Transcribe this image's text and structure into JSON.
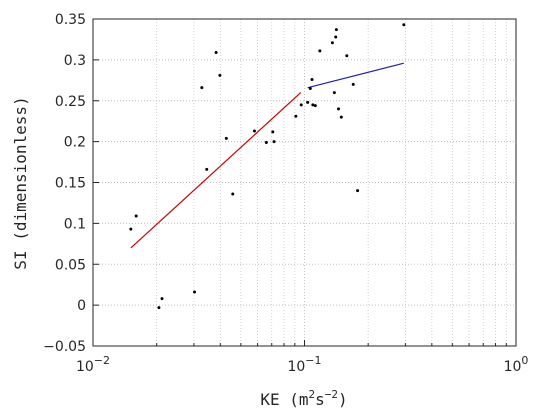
{
  "chart_data": {
    "type": "scatter",
    "title": "",
    "xlabel": {
      "base": "KE (m",
      "sup1": "2",
      "mid": "s",
      "sup2": "−2",
      "end": ")"
    },
    "ylabel": "SI (dimensionless)",
    "xscale": "log",
    "xlim": [
      0.01,
      1
    ],
    "ylim": [
      -0.05,
      0.35
    ],
    "grid": {
      "x": true,
      "x_minor": true,
      "y": true
    },
    "x_ticks": [
      {
        "value": 0.01,
        "base": "10",
        "exp": "−2"
      },
      {
        "value": 0.1,
        "base": "10",
        "exp": "−1"
      },
      {
        "value": 1,
        "base": "10",
        "exp": "0"
      }
    ],
    "y_ticks": [
      {
        "value": -0.05,
        "label": "−0.05"
      },
      {
        "value": 0,
        "label": "0"
      },
      {
        "value": 0.05,
        "label": "0.05"
      },
      {
        "value": 0.1,
        "label": "0.1"
      },
      {
        "value": 0.15,
        "label": "0.15"
      },
      {
        "value": 0.2,
        "label": "0.2"
      },
      {
        "value": 0.25,
        "label": "0.25"
      },
      {
        "value": 0.3,
        "label": "0.3"
      },
      {
        "value": 0.35,
        "label": "0.35"
      }
    ],
    "points": [
      [
        0.0151,
        0.093
      ],
      [
        0.016,
        0.109
      ],
      [
        0.0205,
        -0.003
      ],
      [
        0.0212,
        0.008
      ],
      [
        0.0302,
        0.016
      ],
      [
        0.0327,
        0.266
      ],
      [
        0.0345,
        0.166
      ],
      [
        0.0382,
        0.309
      ],
      [
        0.0398,
        0.281
      ],
      [
        0.0427,
        0.204
      ],
      [
        0.0458,
        0.136
      ],
      [
        0.058,
        0.213
      ],
      [
        0.066,
        0.199
      ],
      [
        0.0708,
        0.212
      ],
      [
        0.0718,
        0.2
      ],
      [
        0.091,
        0.231
      ],
      [
        0.0965,
        0.245
      ],
      [
        0.1035,
        0.248
      ],
      [
        0.1065,
        0.265
      ],
      [
        0.1085,
        0.276
      ],
      [
        0.1095,
        0.245
      ],
      [
        0.1125,
        0.244
      ],
      [
        0.1182,
        0.311
      ],
      [
        0.1355,
        0.321
      ],
      [
        0.1384,
        0.26
      ],
      [
        0.1405,
        0.328
      ],
      [
        0.1415,
        0.337
      ],
      [
        0.1448,
        0.24
      ],
      [
        0.1493,
        0.23
      ],
      [
        0.1585,
        0.305
      ],
      [
        0.17,
        0.27
      ],
      [
        0.1782,
        0.14
      ],
      [
        0.2948,
        0.343
      ]
    ],
    "fit_lines": [
      {
        "color": "#cc0000",
        "from": [
          0.0151,
          0.07
        ],
        "to": [
          0.096,
          0.26
        ]
      },
      {
        "color": "#1f1fb4",
        "from": [
          0.1035,
          0.266
        ],
        "to": [
          0.2948,
          0.296
        ]
      }
    ],
    "point_color": "#000000"
  }
}
